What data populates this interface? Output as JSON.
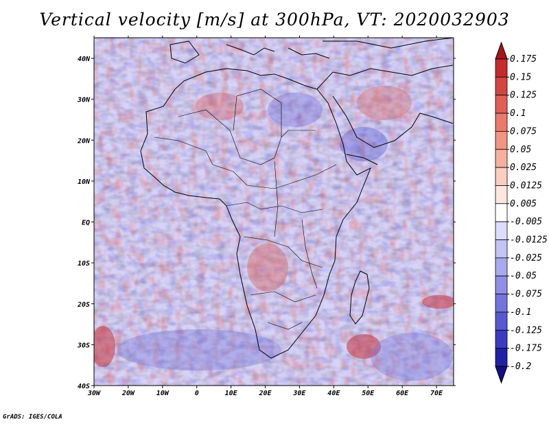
{
  "title": "Vertical velocity [m/s] at 300hPa, VT: 2020032903",
  "credit": "GrADS: IGES/COLA",
  "axes": {
    "lon_labels": [
      "30W",
      "20W",
      "10W",
      "0",
      "10E",
      "20E",
      "30E",
      "40E",
      "50E",
      "60E",
      "70E"
    ],
    "lat_labels": [
      "40N",
      "30N",
      "20N",
      "10N",
      "EQ",
      "10S",
      "20S",
      "30S",
      "40S"
    ]
  },
  "colorbar": {
    "labels": [
      "0.175",
      "0.15",
      "0.125",
      "0.1",
      "0.075",
      "0.05",
      "0.025",
      "0.0125",
      "0.005",
      "-0.005",
      "-0.0125",
      "-0.025",
      "-0.05",
      "-0.075",
      "-0.1",
      "-0.125",
      "-0.175",
      "-0.2"
    ],
    "colors": [
      "#a6161a",
      "#c52a2c",
      "#d5453f",
      "#e25f55",
      "#ec7a6c",
      "#f29583",
      "#f7b09f",
      "#fbcdbf",
      "#fde6dd",
      "#ffffff",
      "#dcdcfb",
      "#c3c3f5",
      "#a9a9ef",
      "#8f8fe8",
      "#7474df",
      "#5858d3",
      "#3b3bc2",
      "#2121a8",
      "#140f84"
    ]
  }
}
